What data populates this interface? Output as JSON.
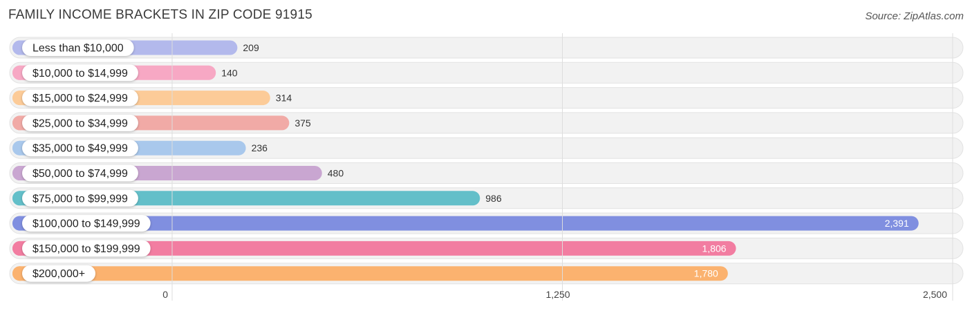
{
  "header": {
    "title": "FAMILY INCOME BRACKETS IN ZIP CODE 91915",
    "source": "Source: ZipAtlas.com"
  },
  "chart_data": {
    "type": "bar",
    "orientation": "horizontal",
    "categories": [
      "Less than $10,000",
      "$10,000 to $14,999",
      "$15,000 to $24,999",
      "$25,000 to $34,999",
      "$35,000 to $49,999",
      "$50,000 to $74,999",
      "$75,000 to $99,999",
      "$100,000 to $149,999",
      "$150,000 to $199,999",
      "$200,000+"
    ],
    "values": [
      209,
      140,
      314,
      375,
      236,
      480,
      986,
      2391,
      1806,
      1780
    ],
    "value_labels": [
      "209",
      "140",
      "314",
      "375",
      "236",
      "480",
      "986",
      "2,391",
      "1,806",
      "1,780"
    ],
    "colors": [
      "#b3b9ec",
      "#f7a8c4",
      "#fccb98",
      "#f1aaa6",
      "#a9c8ec",
      "#c9a6d1",
      "#63bfc9",
      "#808fe0",
      "#f27da1",
      "#fbb26f"
    ],
    "xlim": [
      0,
      2500
    ],
    "ticks": [
      0,
      1250,
      2500
    ],
    "tick_labels": [
      "0",
      "1,250",
      "2,500"
    ],
    "grid": true
  }
}
